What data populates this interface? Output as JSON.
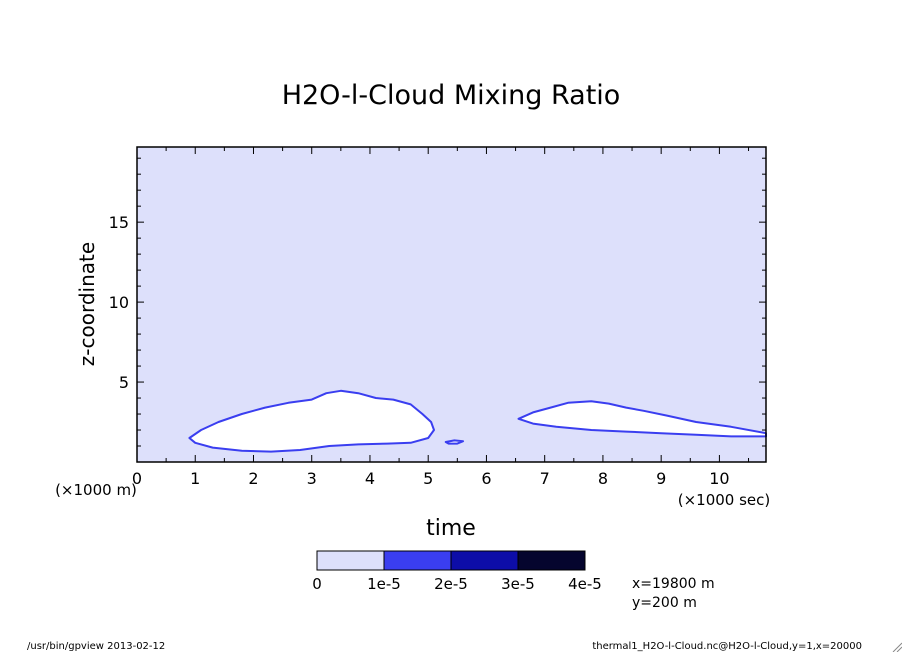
{
  "footer": {
    "left": "/usr/bin/gpview  2013-02-12",
    "right": "thermal1_H2O-l-Cloud.nc@H2O-l-Cloud,y=1,x=20000"
  },
  "chart_data": {
    "type": "contour",
    "title": "H2O-l-Cloud Mixing Ratio",
    "xlabel": "time",
    "ylabel": "z-coordinate",
    "x_unit": "(×1000 sec)",
    "y_unit": "(×1000 m)",
    "xlim": [
      0,
      10.8
    ],
    "ylim": [
      0,
      19.7
    ],
    "xticks": [
      0,
      1,
      2,
      3,
      4,
      5,
      6,
      7,
      8,
      9,
      10
    ],
    "yticks": [
      5,
      10,
      15
    ],
    "levels": [
      0,
      1e-05,
      2e-05,
      3e-05,
      4e-05
    ],
    "colorbar": {
      "tick_labels": [
        "0",
        "1e-5",
        "2e-5",
        "3e-5",
        "4e-5"
      ],
      "colors": [
        "#dde0fb",
        "#3a3ef0",
        "#0d0da8",
        "#05052e"
      ]
    },
    "background_color": "#dde0fb",
    "cloud_fill_color": "#ffffff",
    "edge_color": "#3a3ef0",
    "info": [
      "x=19800 m",
      "y=200 m"
    ],
    "regions": [
      {
        "name": "cloud-region-1",
        "boundary": [
          [
            0.9,
            1.5
          ],
          [
            1.1,
            2.0
          ],
          [
            1.4,
            2.5
          ],
          [
            1.8,
            3.0
          ],
          [
            2.2,
            3.4
          ],
          [
            2.6,
            3.7
          ],
          [
            3.0,
            3.9
          ],
          [
            3.25,
            4.3
          ],
          [
            3.5,
            4.45
          ],
          [
            3.8,
            4.3
          ],
          [
            4.1,
            4.0
          ],
          [
            4.4,
            3.9
          ],
          [
            4.7,
            3.6
          ],
          [
            4.9,
            3.0
          ],
          [
            5.05,
            2.5
          ],
          [
            5.1,
            2.0
          ],
          [
            5.0,
            1.5
          ],
          [
            4.7,
            1.2
          ],
          [
            4.3,
            1.15
          ],
          [
            3.8,
            1.1
          ],
          [
            3.3,
            1.0
          ],
          [
            2.8,
            0.75
          ],
          [
            2.3,
            0.65
          ],
          [
            1.8,
            0.7
          ],
          [
            1.3,
            0.9
          ],
          [
            1.0,
            1.2
          ]
        ]
      },
      {
        "name": "cloud-region-2",
        "boundary": [
          [
            6.55,
            2.7
          ],
          [
            6.8,
            3.1
          ],
          [
            7.1,
            3.4
          ],
          [
            7.4,
            3.7
          ],
          [
            7.8,
            3.8
          ],
          [
            8.1,
            3.65
          ],
          [
            8.4,
            3.4
          ],
          [
            8.7,
            3.2
          ],
          [
            9.1,
            2.9
          ],
          [
            9.6,
            2.5
          ],
          [
            10.2,
            2.2
          ],
          [
            10.8,
            1.8
          ],
          [
            10.8,
            1.6
          ],
          [
            10.2,
            1.6
          ],
          [
            9.6,
            1.7
          ],
          [
            9.0,
            1.8
          ],
          [
            8.4,
            1.9
          ],
          [
            7.8,
            2.0
          ],
          [
            7.2,
            2.2
          ],
          [
            6.8,
            2.4
          ]
        ]
      },
      {
        "name": "cloud-region-3",
        "boundary": [
          [
            5.3,
            1.25
          ],
          [
            5.45,
            1.35
          ],
          [
            5.6,
            1.3
          ],
          [
            5.5,
            1.15
          ],
          [
            5.35,
            1.15
          ]
        ]
      }
    ]
  }
}
